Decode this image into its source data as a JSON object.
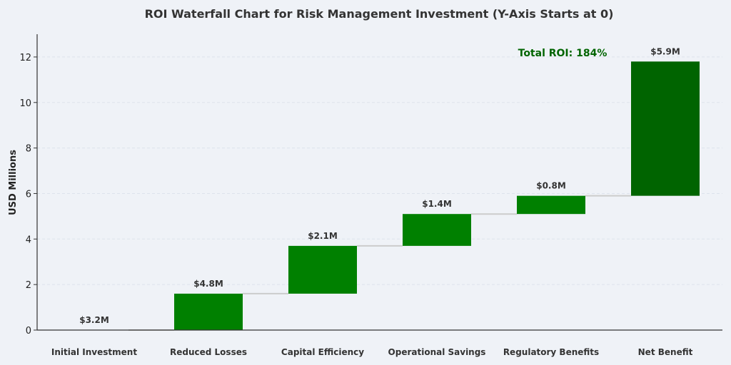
{
  "chart_data": {
    "type": "bar",
    "subtype": "waterfall",
    "title": "ROI Waterfall Chart for Risk Management Investment (Y-Axis Starts at 0)",
    "xlabel": "",
    "ylabel": "USD Millions",
    "ylim": [
      0,
      13
    ],
    "yticks": [
      "0",
      "2",
      "4",
      "6",
      "8",
      "10",
      "12"
    ],
    "grid": true,
    "categories": [
      "Initial Investment",
      "Reduced Losses",
      "Capital Efficiency",
      "Operational Savings",
      "Regulatory Benefits",
      "Net Benefit"
    ],
    "bars": [
      {
        "bottom": 0,
        "top": 0,
        "label": "$3.2M"
      },
      {
        "bottom": 0,
        "top": 1.6,
        "label": "$4.8M"
      },
      {
        "bottom": 1.6,
        "top": 3.7,
        "label": "$2.1M"
      },
      {
        "bottom": 3.7,
        "top": 5.1,
        "label": "$1.4M"
      },
      {
        "bottom": 5.1,
        "top": 5.9,
        "label": "$0.8M"
      },
      {
        "bottom": 5.9,
        "top": 11.8,
        "label": "$5.9M"
      }
    ],
    "annotation": "Total ROI: 184%",
    "colors": {
      "bar": "#008000",
      "total_bar": "#006400",
      "connector": "#cccccc",
      "annotation": "#006400",
      "axis": "#333333",
      "grid": "#dde3ec"
    }
  }
}
